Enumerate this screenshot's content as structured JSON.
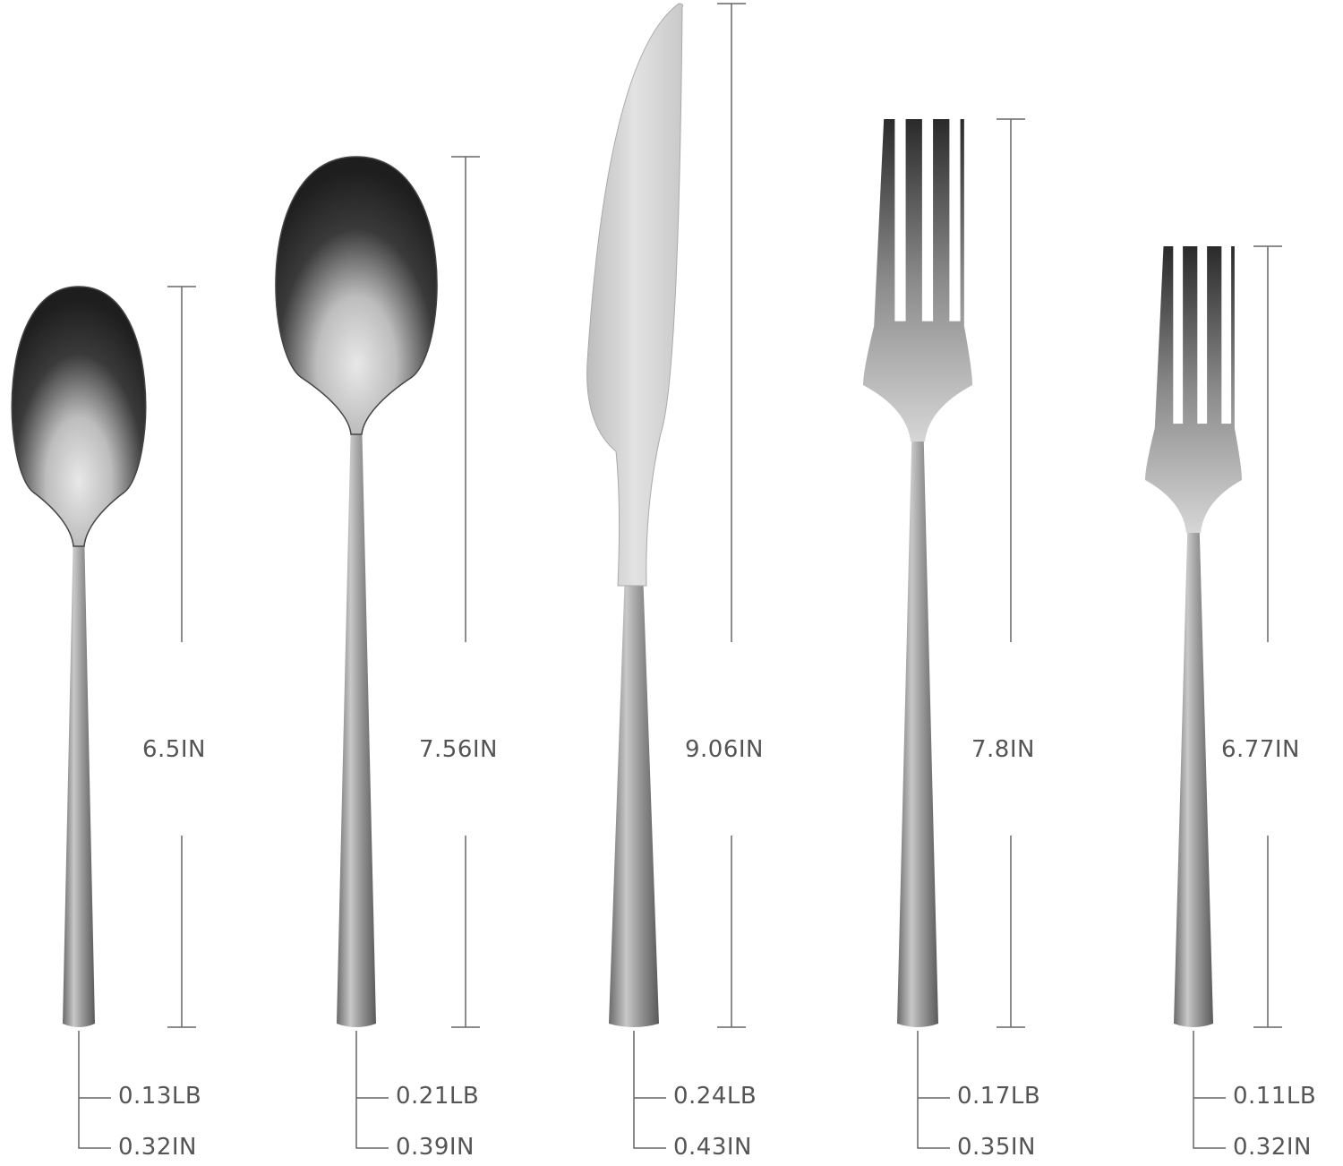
{
  "items": [
    {
      "name": "teaspoon",
      "length": "6.5IN",
      "weight": "0.13LB",
      "handle_width": "0.32IN"
    },
    {
      "name": "tablespoon",
      "length": "7.56IN",
      "weight": "0.21LB",
      "handle_width": "0.39IN"
    },
    {
      "name": "knife",
      "length": "9.06IN",
      "weight": "0.24LB",
      "handle_width": "0.43IN"
    },
    {
      "name": "dinner-fork",
      "length": "7.8IN",
      "weight": "0.17LB",
      "handle_width": "0.35IN"
    },
    {
      "name": "salad-fork",
      "length": "6.77IN",
      "weight": "0.11LB",
      "handle_width": "0.32IN"
    }
  ],
  "colors": {
    "line": "#666666",
    "text": "#555555",
    "metal_light": "#d8d8d8",
    "metal_dark": "#2a2a2a"
  }
}
